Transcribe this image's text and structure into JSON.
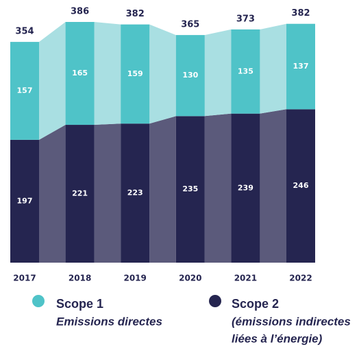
{
  "chart_data": {
    "type": "stacked_bar",
    "categories": [
      "2017",
      "2018",
      "2019",
      "2020",
      "2021",
      "2022"
    ],
    "series": [
      {
        "name": "Scope 2",
        "description": [
          "(émissions indirectes",
          "liées à l’énergie)"
        ],
        "color": "#252550",
        "band_color": "#5b5a7b",
        "values": [
          197,
          221,
          223,
          235,
          239,
          246
        ]
      },
      {
        "name": "Scope 1",
        "description": [
          "Emissions directes"
        ],
        "color": "#4fc3c8",
        "band_color": "#a9dfe2",
        "values": [
          157,
          165,
          159,
          130,
          135,
          137
        ]
      }
    ],
    "totals": [
      354,
      386,
      382,
      365,
      373,
      382
    ]
  }
}
